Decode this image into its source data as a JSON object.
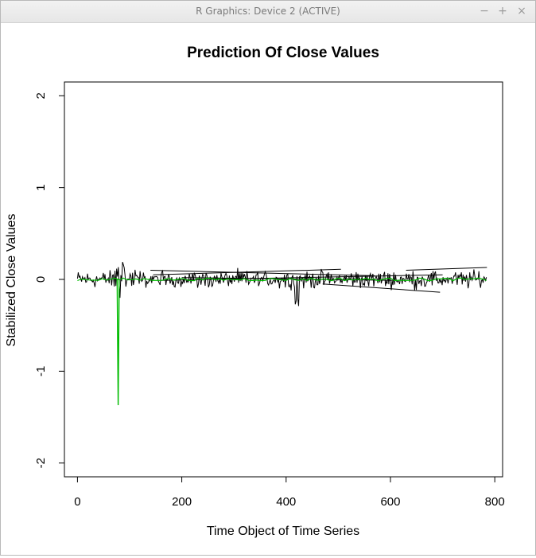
{
  "window": {
    "title": "R Graphics: Device 2 (ACTIVE)",
    "minimize_glyph": "−",
    "maximize_glyph": "+",
    "close_glyph": "×"
  },
  "chart_data": {
    "type": "line",
    "title": "Prediction Of Close Values",
    "xlabel": "Time Object of Time Series",
    "ylabel": "Stabilized Close Values",
    "xlim": [
      -25,
      815
    ],
    "ylim": [
      -2.15,
      2.15
    ],
    "xticks": [
      0,
      200,
      400,
      600,
      800
    ],
    "yticks": [
      -2,
      -1,
      0,
      1,
      2
    ],
    "grid": false,
    "colors": {
      "observed": "#000000",
      "predicted": "#00bb00"
    },
    "approx_range": {
      "x": [
        0,
        785
      ],
      "y": [
        -1.37,
        0.4
      ]
    }
  }
}
